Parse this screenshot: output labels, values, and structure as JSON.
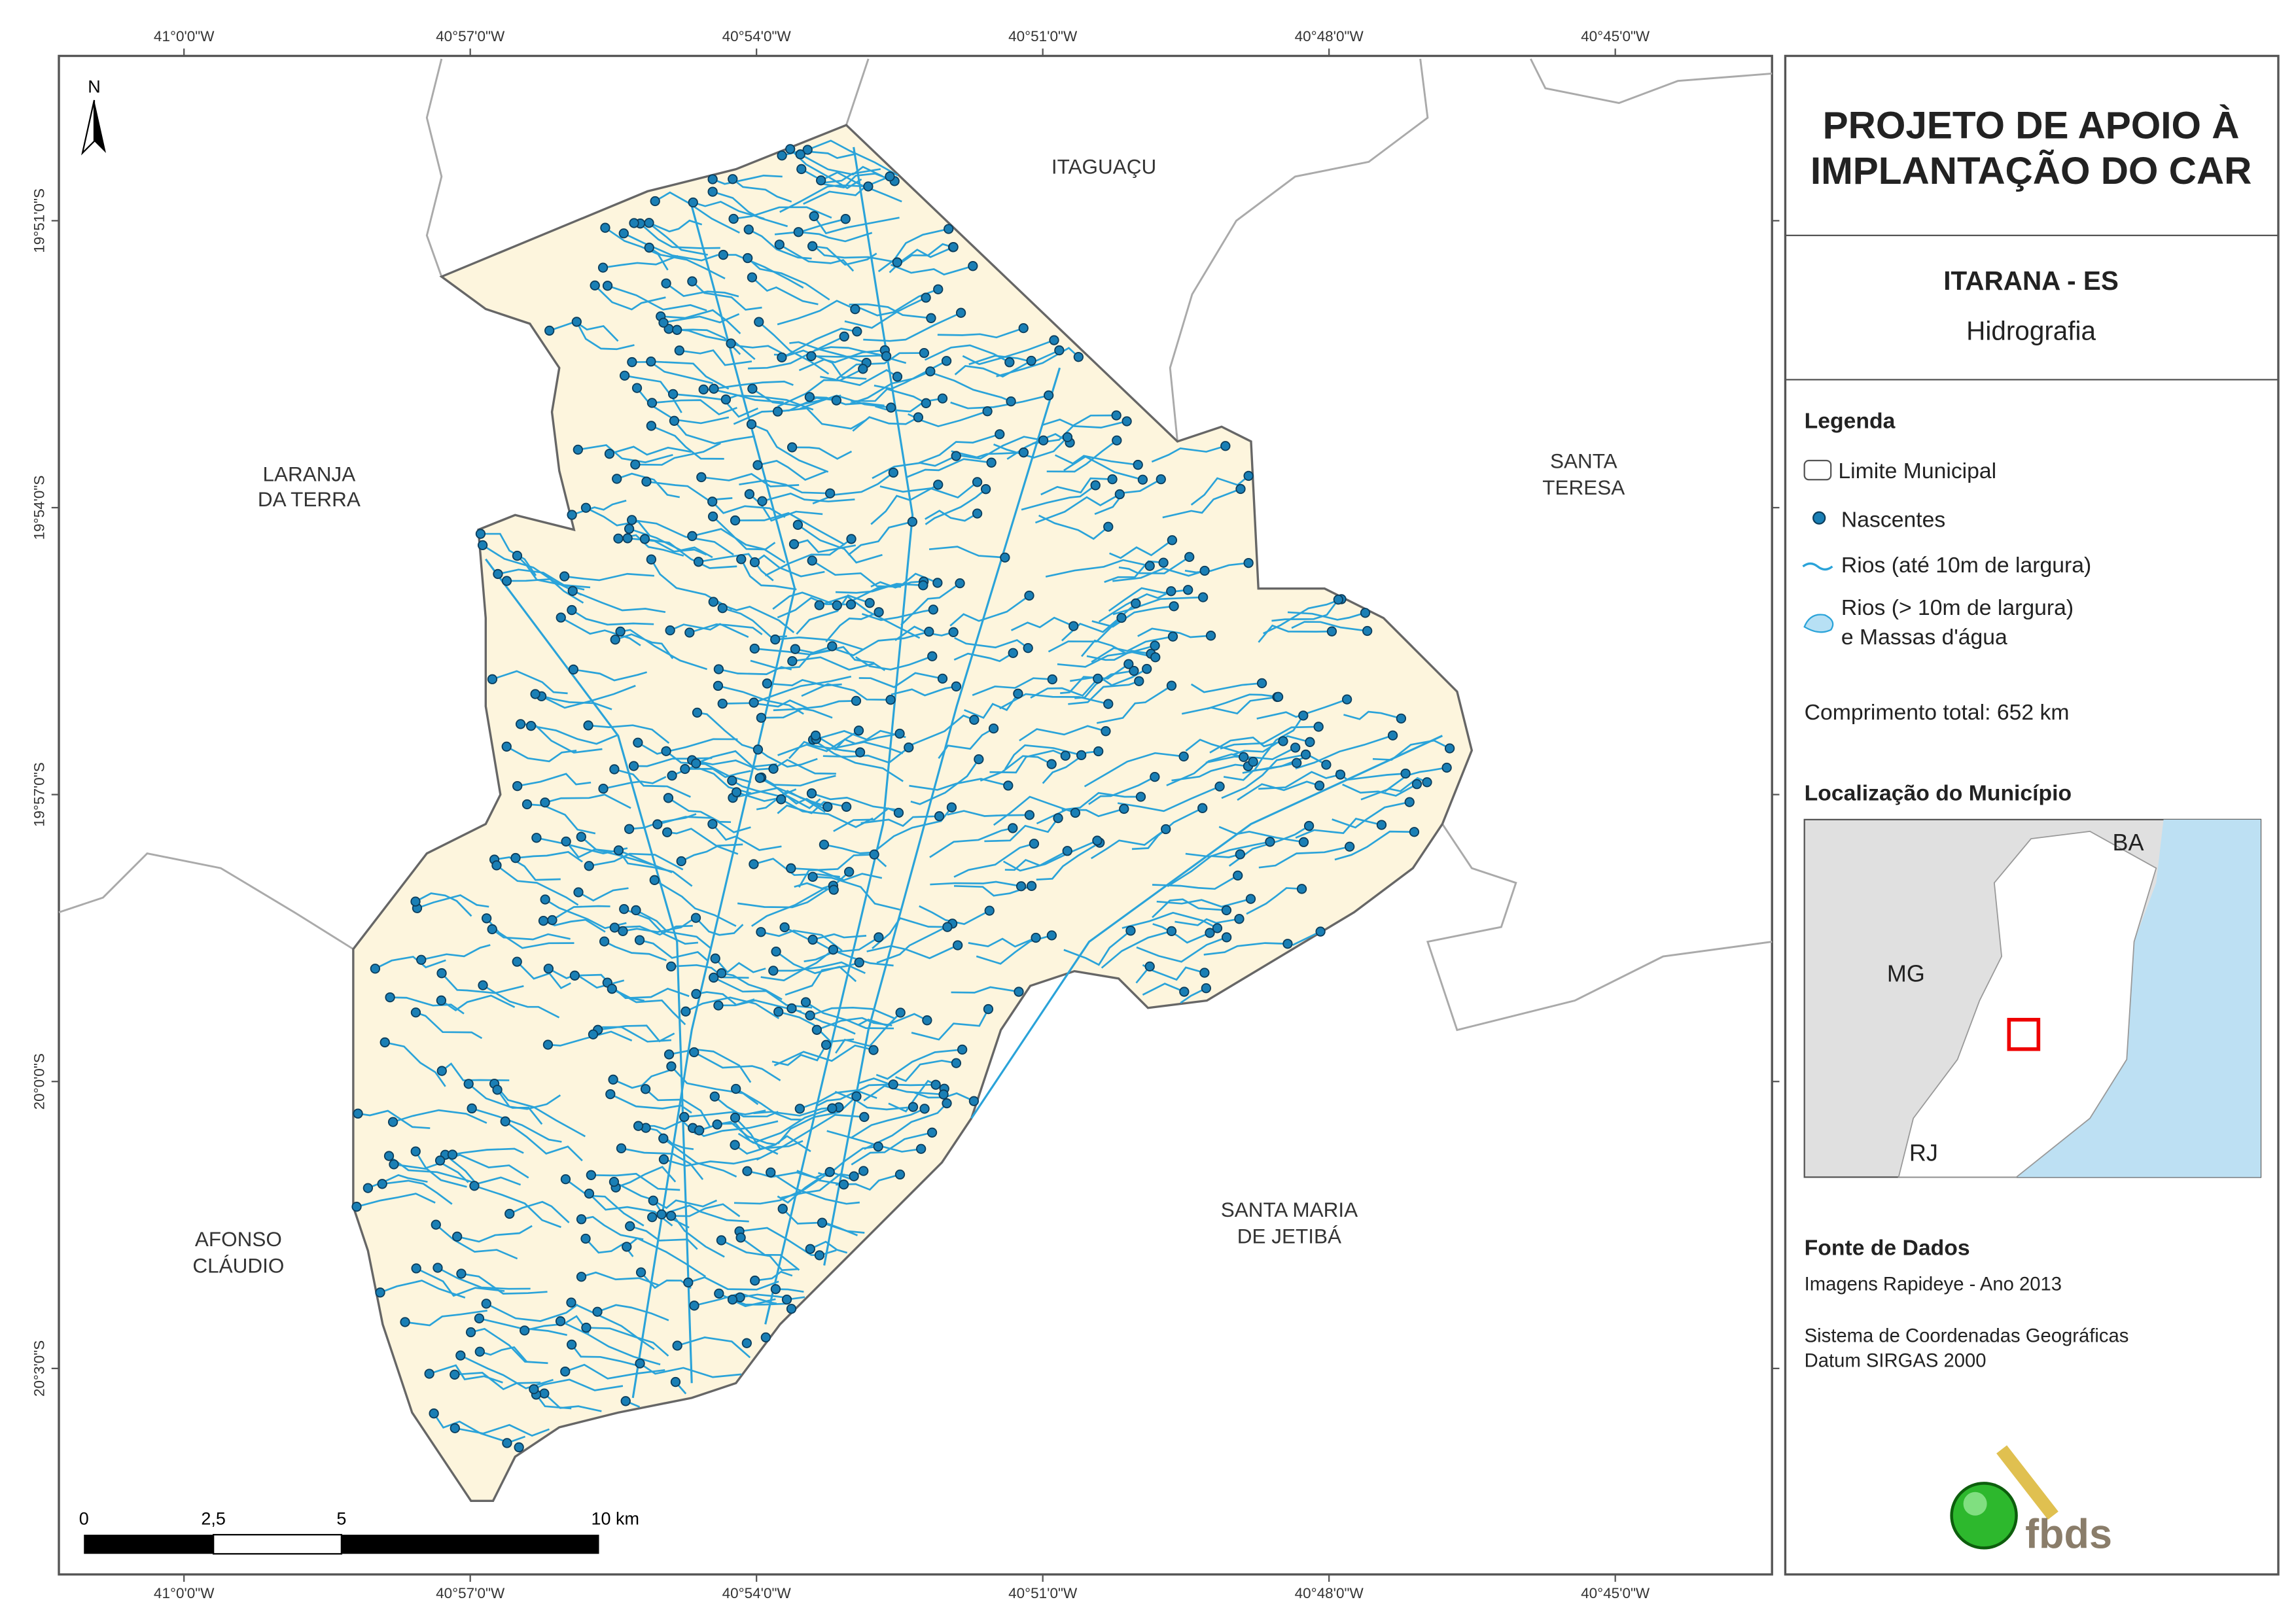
{
  "map": {
    "x_labels": [
      "41°0'0\"W",
      "40°57'0\"W",
      "40°54'0\"W",
      "40°51'0\"W",
      "40°48'0\"W",
      "40°45'0\"W"
    ],
    "y_labels": [
      "19°51'0\"S",
      "19°54'0\"S",
      "19°57'0\"S",
      "20°0'0\"S",
      "20°3'0\"S"
    ],
    "north": "N",
    "neighbors": [
      [
        "ITAGUAÇU"
      ],
      [
        "LARANJA",
        "DA TERRA"
      ],
      [
        "SANTA",
        "TERESA"
      ],
      [
        "AFONSO",
        "CLÁUDIO"
      ],
      [
        "SANTA MARIA",
        "DE JETIBÁ"
      ]
    ],
    "scale_labels": [
      "0",
      "2,5",
      "5",
      "10 km"
    ]
  },
  "panel": {
    "title": [
      "PROJETO DE APOIO À",
      "IMPLANTAÇÃO DO CAR"
    ],
    "municipality": "ITARANA - ES",
    "theme": "Hidrografia",
    "legend_title": "Legenda",
    "legend": [
      [
        "Limite Municipal"
      ],
      [
        "Nascentes"
      ],
      [
        "Rios (até 10m de largura)"
      ],
      [
        "Rios (> 10m de largura)",
        "e Massas d'água"
      ]
    ],
    "total_length": "Comprimento total: 652 km",
    "location_title": "Localização do Município",
    "inset_labels": [
      "BA",
      "MG",
      "RJ"
    ],
    "source_title": "Fonte de Dados",
    "sources": [
      "Imagens Rapideye - Ano 2013",
      "Sistema de Coordenadas Geográficas",
      "Datum SIRGAS 2000"
    ],
    "logo": "fbds"
  }
}
